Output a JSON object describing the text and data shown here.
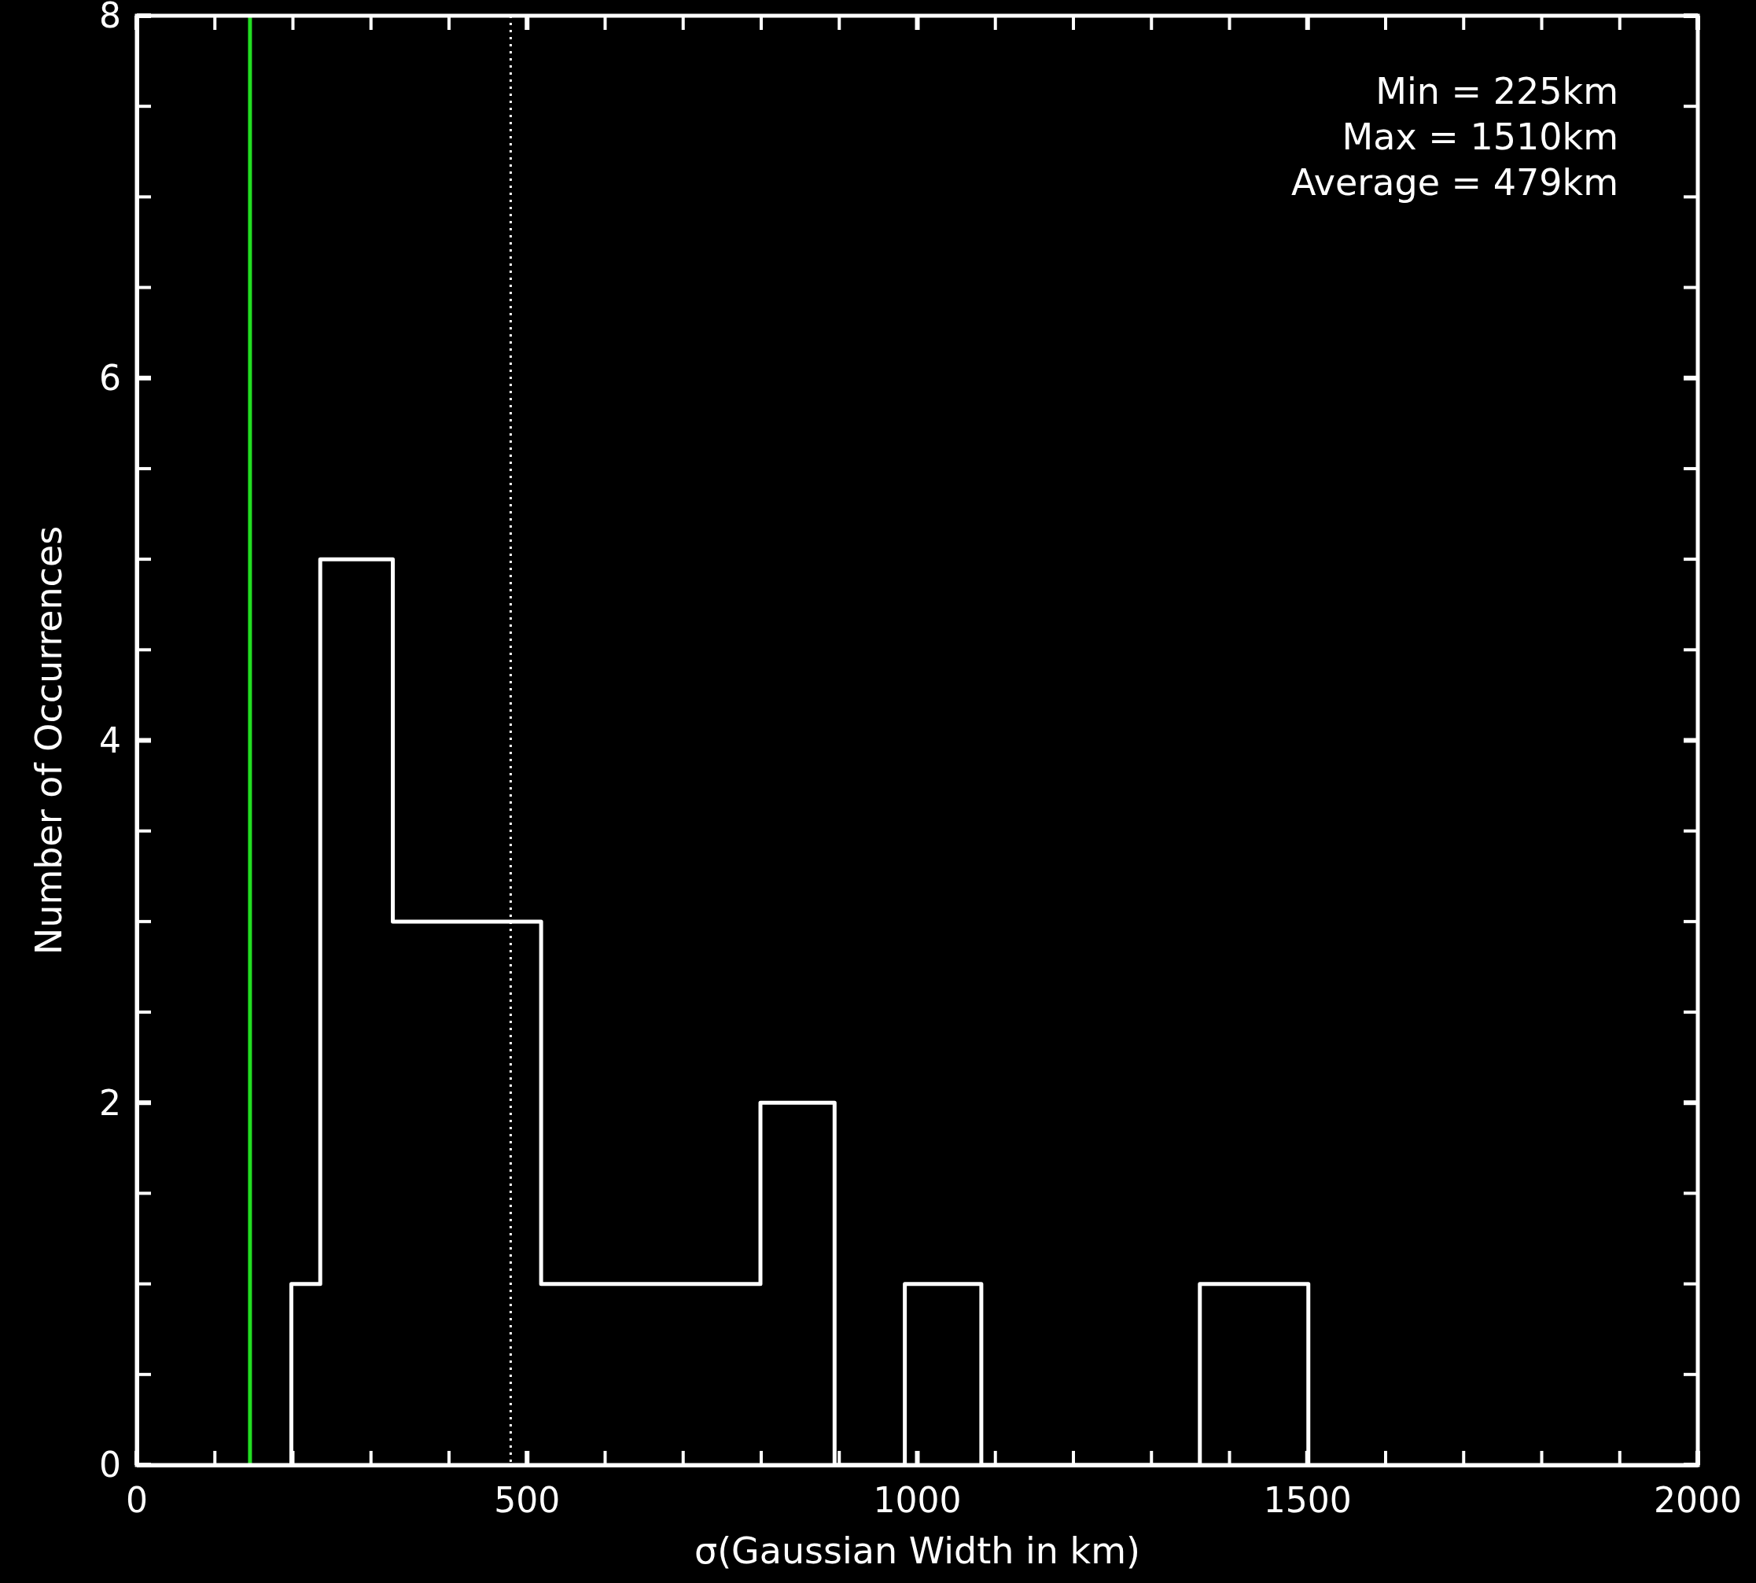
{
  "chart_data": {
    "type": "histogram",
    "xlabel": "σ(Gaussian Width in km)",
    "ylabel": "Number of Occurrences",
    "bins": [
      198,
      235,
      328,
      518,
      799,
      894,
      984,
      1082,
      1362,
      1501
    ],
    "values": [
      1,
      5,
      3,
      1,
      2,
      0,
      1,
      0,
      1
    ],
    "color": "#ffffff",
    "xlim": [
      0,
      2000
    ],
    "xticks": [
      0,
      500,
      1000,
      1500,
      2000
    ],
    "ylim": [
      0,
      8
    ],
    "yticks": [
      0,
      2,
      4,
      6,
      8
    ],
    "ref_lines": [
      {
        "axis": "x",
        "value": 145,
        "color": "#22dd22",
        "line_style": "solid"
      },
      {
        "axis": "x",
        "value": 479,
        "color": "#ffffff",
        "line_style": "dotted"
      }
    ],
    "annotations": [
      "Min = 225km",
      "Max = 1510km",
      "Average = 479km"
    ],
    "grid": false
  }
}
